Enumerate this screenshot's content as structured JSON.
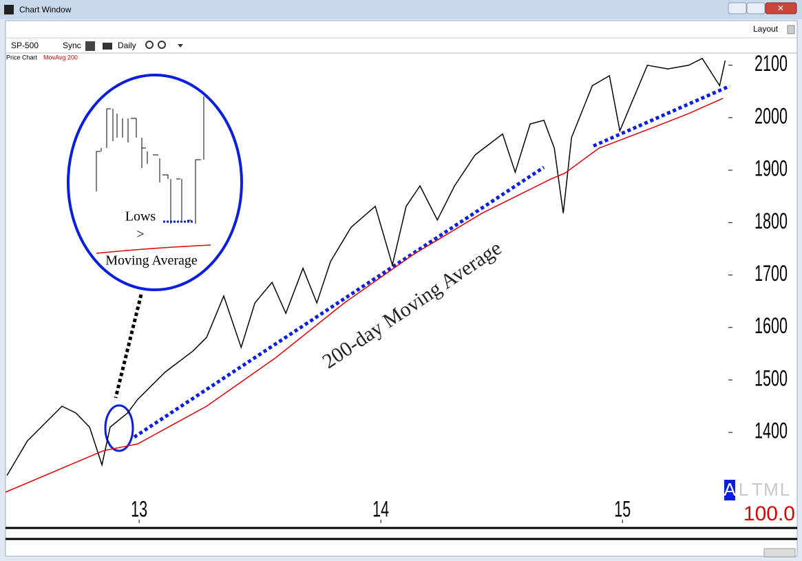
{
  "window": {
    "title": "Chart Window",
    "layout_button": "Layout"
  },
  "toolbar": {
    "symbol": "SP-500",
    "sync": "Sync",
    "period": "Daily"
  },
  "chart_data": {
    "type": "line",
    "xlim": [
      2012.447,
      2015.438
    ],
    "ylim": [
      1227,
      2122
    ],
    "xticks": [
      {
        "value": 2013,
        "label": "13"
      },
      {
        "value": 2014,
        "label": "14"
      },
      {
        "value": 2015,
        "label": "15"
      }
    ],
    "yticks": [
      1400,
      1500,
      1600,
      1700,
      1800,
      1900,
      2000,
      2100
    ],
    "series": [
      {
        "name": "Price Chart",
        "color": "#000000",
        "x": [
          2012.453,
          2012.538,
          2012.681,
          2012.738,
          2012.795,
          2012.846,
          2012.88,
          2012.952,
          2012.994,
          2013.108,
          2013.222,
          2013.279,
          2013.35,
          2013.422,
          2013.479,
          2013.55,
          2013.607,
          2013.678,
          2013.735,
          2013.792,
          2013.877,
          2013.977,
          2014.048,
          2014.105,
          2014.162,
          2014.234,
          2014.305,
          2014.39,
          2014.504,
          2014.556,
          2014.618,
          2014.675,
          2014.718,
          2014.755,
          2014.789,
          2014.875,
          2014.946,
          2014.989,
          2015.103,
          2015.188,
          2015.274,
          2015.33,
          2015.402,
          2015.425
        ],
        "values": [
          1318,
          1384,
          1450,
          1437,
          1410,
          1338,
          1410,
          1437,
          1463,
          1515,
          1555,
          1581,
          1660,
          1562,
          1647,
          1686,
          1627,
          1713,
          1647,
          1726,
          1791,
          1831,
          1719,
          1831,
          1870,
          1805,
          1870,
          1929,
          1969,
          1896,
          1988,
          1995,
          1942,
          1818,
          1962,
          2061,
          2080,
          1975,
          2100,
          2093,
          2100,
          2113,
          2061,
          2109
        ]
      },
      {
        "name": "MovAvg 200",
        "color": "#e00000",
        "x": [
          2012.447,
          2012.852,
          2012.994,
          2013.279,
          2013.564,
          2013.849,
          2014.134,
          2014.419,
          2014.704,
          2014.761,
          2014.903,
          2015.131,
          2015.274,
          2015.416
        ],
        "values": [
          1286,
          1365,
          1378,
          1450,
          1542,
          1647,
          1739,
          1818,
          1883,
          1894,
          1942,
          1982,
          2008,
          2037
        ]
      }
    ],
    "annotations": [
      "200-day Moving Average",
      "Lows",
      ">",
      "Moving Average"
    ]
  },
  "status": {
    "modes": [
      "A",
      "L",
      "T",
      "M",
      "L"
    ],
    "value": "100.0"
  }
}
